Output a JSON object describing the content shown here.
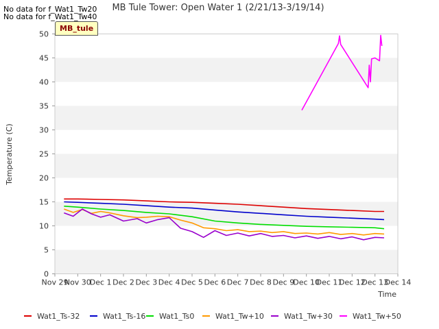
{
  "no_data": [
    "No data for f_Wat1_Tw20",
    "No data for f_Wat1_Tw40"
  ],
  "badge": "MB_tule",
  "chart_data": {
    "type": "line",
    "title": "MB Tule Tower: Open Water 1 (2/21/13-3/19/14)",
    "xlabel": "Time",
    "ylabel": "Temperature (C)",
    "ylim": [
      0,
      50
    ],
    "yticks": [
      0,
      5,
      10,
      15,
      20,
      25,
      30,
      35,
      40,
      45,
      50
    ],
    "xlim": [
      0,
      15
    ],
    "xticks": [
      {
        "v": 0,
        "label": "Nov 29"
      },
      {
        "v": 1,
        "label": "Nov 30"
      },
      {
        "v": 2,
        "label": "Dec 1"
      },
      {
        "v": 3,
        "label": "Dec 2"
      },
      {
        "v": 4,
        "label": "Dec 3"
      },
      {
        "v": 5,
        "label": "Dec 4"
      },
      {
        "v": 6,
        "label": "Dec 5"
      },
      {
        "v": 7,
        "label": "Dec 6"
      },
      {
        "v": 8,
        "label": "Dec 7"
      },
      {
        "v": 9,
        "label": "Dec 8"
      },
      {
        "v": 10,
        "label": "Dec 9"
      },
      {
        "v": 11,
        "label": "Dec 10"
      },
      {
        "v": 12,
        "label": "Dec 11"
      },
      {
        "v": 13,
        "label": "Dec 12"
      },
      {
        "v": 14,
        "label": "Dec 13"
      },
      {
        "v": 15,
        "label": "Dec 14"
      }
    ],
    "grid": "horizontal bands",
    "legend_position": "bottom",
    "series": [
      {
        "name": "Wat1_Ts-32",
        "color": "#dd0000",
        "points": [
          [
            0.4,
            15.6
          ],
          [
            1,
            15.6
          ],
          [
            2,
            15.5
          ],
          [
            3,
            15.4
          ],
          [
            4,
            15.2
          ],
          [
            5,
            15.0
          ],
          [
            6,
            14.9
          ],
          [
            7,
            14.7
          ],
          [
            8,
            14.5
          ],
          [
            9,
            14.2
          ],
          [
            10,
            13.9
          ],
          [
            11,
            13.6
          ],
          [
            12,
            13.4
          ],
          [
            13,
            13.2
          ],
          [
            14,
            13.0
          ],
          [
            14.4,
            13.0
          ]
        ]
      },
      {
        "name": "Wat1_Ts-16",
        "color": "#0000cc",
        "points": [
          [
            0.4,
            15.0
          ],
          [
            1,
            14.9
          ],
          [
            2,
            14.7
          ],
          [
            3,
            14.5
          ],
          [
            4,
            14.2
          ],
          [
            5,
            13.9
          ],
          [
            6,
            13.7
          ],
          [
            7,
            13.3
          ],
          [
            8,
            12.9
          ],
          [
            9,
            12.6
          ],
          [
            10,
            12.3
          ],
          [
            11,
            12.0
          ],
          [
            12,
            11.8
          ],
          [
            13,
            11.6
          ],
          [
            14,
            11.4
          ],
          [
            14.4,
            11.3
          ]
        ]
      },
      {
        "name": "Wat1_Ts0",
        "color": "#00dd00",
        "points": [
          [
            0.4,
            14.1
          ],
          [
            1,
            13.9
          ],
          [
            2,
            13.5
          ],
          [
            3,
            13.2
          ],
          [
            4,
            12.8
          ],
          [
            5,
            12.5
          ],
          [
            6,
            11.9
          ],
          [
            7,
            11.0
          ],
          [
            8,
            10.6
          ],
          [
            9,
            10.3
          ],
          [
            10,
            10.1
          ],
          [
            11,
            9.9
          ],
          [
            12,
            9.8
          ],
          [
            13,
            9.7
          ],
          [
            14,
            9.6
          ],
          [
            14.4,
            9.4
          ]
        ]
      },
      {
        "name": "Wat1_Tw+10",
        "color": "#ff9900",
        "points": [
          [
            0.4,
            13.5
          ],
          [
            0.8,
            12.8
          ],
          [
            1.2,
            13.4
          ],
          [
            1.6,
            12.6
          ],
          [
            2,
            13.0
          ],
          [
            2.4,
            12.7
          ],
          [
            3,
            12.1
          ],
          [
            3.6,
            11.7
          ],
          [
            4,
            11.8
          ],
          [
            4.5,
            12.0
          ],
          [
            5,
            11.9
          ],
          [
            5.5,
            11.2
          ],
          [
            6,
            10.6
          ],
          [
            6.5,
            9.6
          ],
          [
            7,
            9.4
          ],
          [
            7.5,
            9.0
          ],
          [
            8,
            9.2
          ],
          [
            8.5,
            8.8
          ],
          [
            9,
            8.9
          ],
          [
            9.5,
            8.6
          ],
          [
            10,
            8.8
          ],
          [
            10.5,
            8.4
          ],
          [
            11,
            8.5
          ],
          [
            11.5,
            8.3
          ],
          [
            12,
            8.6
          ],
          [
            12.5,
            8.2
          ],
          [
            13,
            8.4
          ],
          [
            13.5,
            8.1
          ],
          [
            14,
            8.4
          ],
          [
            14.4,
            8.3
          ]
        ]
      },
      {
        "name": "Wat1_Tw+30",
        "color": "#9900cc",
        "points": [
          [
            0.4,
            12.7
          ],
          [
            0.8,
            12.0
          ],
          [
            1.2,
            13.5
          ],
          [
            1.6,
            12.5
          ],
          [
            2,
            11.8
          ],
          [
            2.4,
            12.3
          ],
          [
            3,
            11.0
          ],
          [
            3.6,
            11.5
          ],
          [
            4,
            10.6
          ],
          [
            4.5,
            11.3
          ],
          [
            5,
            11.7
          ],
          [
            5.5,
            9.5
          ],
          [
            6,
            8.8
          ],
          [
            6.5,
            7.6
          ],
          [
            7,
            9.0
          ],
          [
            7.5,
            8.0
          ],
          [
            8,
            8.5
          ],
          [
            8.5,
            7.9
          ],
          [
            9,
            8.4
          ],
          [
            9.5,
            7.8
          ],
          [
            10,
            8.0
          ],
          [
            10.5,
            7.5
          ],
          [
            11,
            7.9
          ],
          [
            11.5,
            7.4
          ],
          [
            12,
            7.8
          ],
          [
            12.5,
            7.3
          ],
          [
            13,
            7.7
          ],
          [
            13.5,
            7.1
          ],
          [
            14,
            7.6
          ],
          [
            14.4,
            7.5
          ]
        ]
      },
      {
        "name": "Wat1_Tw+50",
        "color": "#ff00ff",
        "points": [
          [
            10.8,
            34.1
          ],
          [
            12.4,
            48.0
          ],
          [
            12.45,
            49.6
          ],
          [
            12.5,
            47.8
          ],
          [
            13.7,
            38.8
          ],
          [
            13.75,
            43.5
          ],
          [
            13.8,
            40.0
          ],
          [
            13.85,
            44.8
          ],
          [
            14.0,
            45.0
          ],
          [
            14.2,
            44.4
          ],
          [
            14.25,
            49.7
          ],
          [
            14.3,
            47.5
          ]
        ]
      }
    ]
  }
}
